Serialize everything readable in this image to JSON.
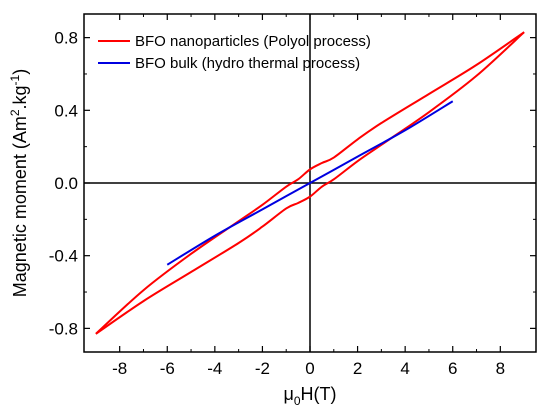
{
  "chart_data": {
    "type": "line",
    "xlabel": "μ0H(T)",
    "ylabel": "Magnetic moment (Am2.kg-1)",
    "xlim": [
      -9.5,
      9.5
    ],
    "ylim": [
      -0.93,
      0.93
    ],
    "xticks": [
      -8,
      -6,
      -4,
      -2,
      0,
      2,
      4,
      6,
      8
    ],
    "yticks": [
      -0.8,
      -0.4,
      0.0,
      0.4,
      0.8
    ],
    "xtick_labels": [
      "-8",
      "-6",
      "-4",
      "-2",
      "0",
      "2",
      "4",
      "6",
      "8"
    ],
    "ytick_labels": [
      "-0.8",
      "-0.4",
      "0.0",
      "0.4",
      "0.8"
    ],
    "legend": {
      "placement": "top-left"
    },
    "zero_lines": true,
    "series": [
      {
        "name": "BFO nanoparticles (Polyol process)",
        "color": "#ff0000",
        "branches": [
          {
            "x": [
              9,
              7,
              5,
              3,
              2,
              1,
              0.5,
              0,
              -0.5,
              -1,
              -2,
              -3,
              -5,
              -7,
              -9
            ],
            "y": [
              0.83,
              0.65,
              0.49,
              0.33,
              0.24,
              0.14,
              0.11,
              0.075,
              0.02,
              -0.02,
              -0.12,
              -0.21,
              -0.39,
              -0.59,
              -0.83
            ]
          },
          {
            "x": [
              -9,
              -7,
              -5,
              -3,
              -2,
              -1,
              -0.5,
              0,
              0.5,
              1,
              2,
              3,
              5,
              7,
              9
            ],
            "y": [
              -0.83,
              -0.65,
              -0.49,
              -0.33,
              -0.24,
              -0.14,
              -0.11,
              -0.075,
              -0.02,
              0.02,
              0.12,
              0.21,
              0.39,
              0.59,
              0.83
            ]
          }
        ]
      },
      {
        "name": "BFO bulk (hydro thermal process)",
        "color": "#0000e0",
        "branches": [
          {
            "x": [
              -6,
              -4,
              -2,
              0,
              2,
              4,
              6
            ],
            "y": [
              -0.45,
              -0.29,
              -0.145,
              0.0,
              0.145,
              0.29,
              0.45
            ]
          }
        ]
      }
    ]
  },
  "labels": {
    "xlabel_mu": "μ",
    "xlabel_sub": "0",
    "xlabel_rest": "H(T)",
    "ylabel_main": "Magnetic moment (Am",
    "ylabel_sup1": "2",
    "ylabel_mid": ".kg",
    "ylabel_sup2": "-1",
    "ylabel_end": ")"
  }
}
